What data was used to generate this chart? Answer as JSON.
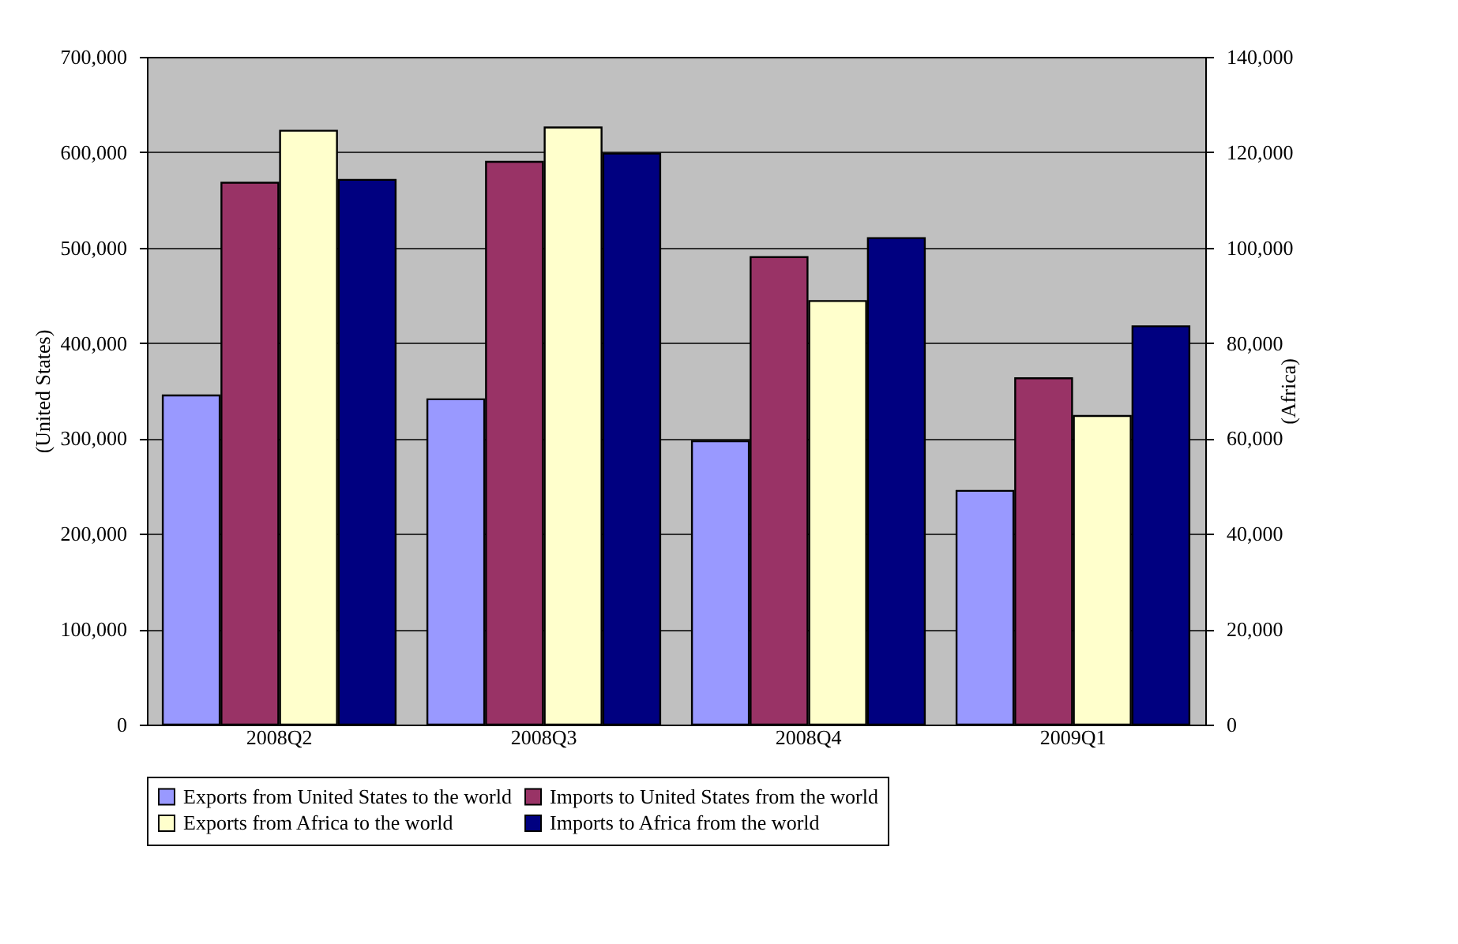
{
  "chart_data": {
    "type": "bar",
    "categories": [
      "2008Q2",
      "2008Q3",
      "2008Q4",
      "2009Q1"
    ],
    "series": [
      {
        "name": "Exports from United States to the world",
        "color": "#9999ff",
        "values": [
          345000,
          341000,
          297000,
          245000
        ]
      },
      {
        "name": "Imports to United States from the world",
        "color": "#993366",
        "values": [
          568000,
          590000,
          490000,
          363000
        ]
      },
      {
        "name": "Exports from Africa to the world",
        "color": "#ffffcc",
        "values": [
          124500,
          125200,
          88800,
          64700
        ],
        "axis": "y2"
      },
      {
        "name": "Imports to Africa from the world",
        "color": "#000080",
        "values": [
          114200,
          119700,
          102000,
          83500
        ],
        "axis": "y2"
      }
    ],
    "ylabel": "(United States)",
    "y2label": "(Africa)",
    "ylim": [
      0,
      700000
    ],
    "yticks": [
      0,
      {
        "value": 100000,
        "label": "100,000"
      },
      {
        "value": 200000,
        "label": "200,000"
      },
      {
        "value": 300000,
        "label": "300,000"
      },
      {
        "value": 400000,
        "label": "400,000"
      },
      {
        "value": 500000,
        "label": "500,000"
      },
      {
        "value": 600000,
        "label": "600,000"
      },
      {
        "value": 700000,
        "label": "700,000"
      }
    ],
    "y2lim": [
      0,
      140000
    ],
    "y2ticks": [
      0,
      {
        "value": 20000,
        "label": "20,000"
      },
      {
        "value": 40000,
        "label": "40,000"
      },
      {
        "value": 60000,
        "label": "60,000"
      },
      {
        "value": 80000,
        "label": "80,000"
      },
      {
        "value": 100000,
        "label": "100,000"
      },
      {
        "value": 120000,
        "label": "120,000"
      },
      {
        "value": 140000,
        "label": "140,000"
      }
    ],
    "grid": "y",
    "legend": "bottom"
  }
}
